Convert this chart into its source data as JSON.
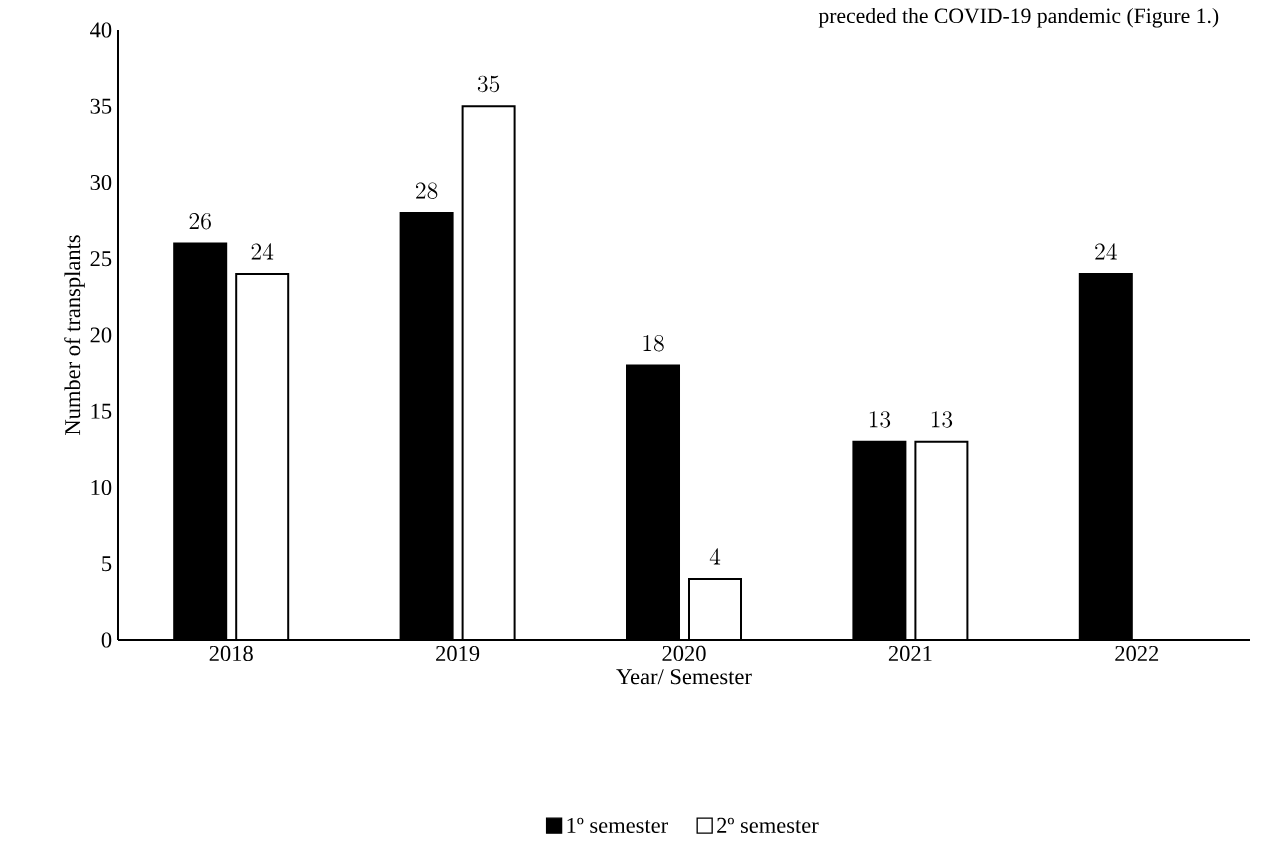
{
  "chart_data": {
    "type": "bar",
    "xlabel": "Year/ Semester",
    "ylabel": "Number of transplants",
    "annotations": [
      "preceded the COVID-19 pandemic (Figure 1.)"
    ],
    "categories": [
      "2018",
      "2019",
      "2020",
      "2021",
      "2022"
    ],
    "series": [
      {
        "name": "1º semester",
        "color": "#000000",
        "values": [
          26,
          28,
          18,
          13,
          24
        ]
      },
      {
        "name": "2º semester",
        "color": "#ffffff",
        "values": [
          24,
          35,
          4,
          13,
          null
        ]
      }
    ],
    "ylim": [
      0,
      40
    ],
    "yticks": [
      0,
      5,
      10,
      15,
      20,
      25,
      30,
      35,
      40
    ],
    "data_labels": true,
    "legend": "bottom",
    "grid": false
  }
}
